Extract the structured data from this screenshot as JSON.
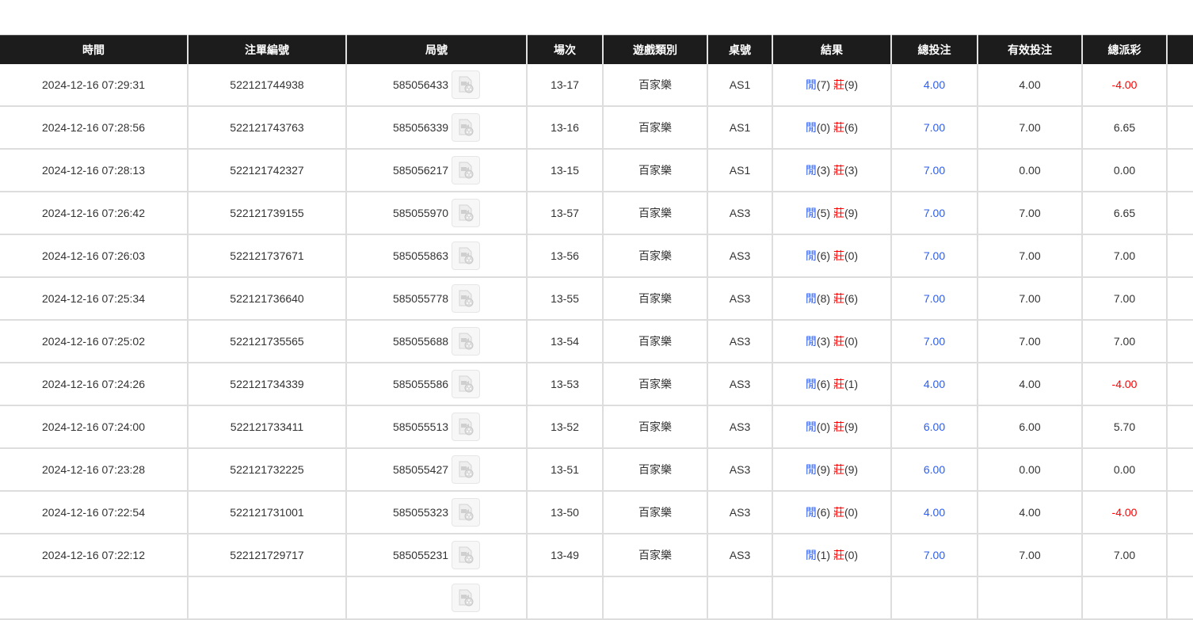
{
  "headers": [
    "時間",
    "注單編號",
    "局號",
    "場次",
    "遊戲類別",
    "桌號",
    "結果",
    "總投注",
    "有效投注",
    "總派彩",
    ""
  ],
  "result_labels": {
    "player": "閒",
    "banker": "莊"
  },
  "colors": {
    "header_bg": "#1c1c1c",
    "player": "#2a5df5",
    "banker": "#ff0000",
    "negative": "#ff0000",
    "bet": "#2a5df5"
  },
  "rows": [
    {
      "time": "2024-12-16 07:29:31",
      "order": "522121744938",
      "round": "585056433",
      "shoe": "13-17",
      "game": "百家樂",
      "table": "AS1",
      "p": "(7)",
      "b": "(9)",
      "bet": "4.00",
      "valid": "4.00",
      "payout": "-4.00",
      "neg": true
    },
    {
      "time": "2024-12-16 07:28:56",
      "order": "522121743763",
      "round": "585056339",
      "shoe": "13-16",
      "game": "百家樂",
      "table": "AS1",
      "p": "(0)",
      "b": "(6)",
      "bet": "7.00",
      "valid": "7.00",
      "payout": "6.65",
      "neg": false
    },
    {
      "time": "2024-12-16 07:28:13",
      "order": "522121742327",
      "round": "585056217",
      "shoe": "13-15",
      "game": "百家樂",
      "table": "AS1",
      "p": "(3)",
      "b": "(3)",
      "bet": "7.00",
      "valid": "0.00",
      "payout": "0.00",
      "neg": false
    },
    {
      "time": "2024-12-16 07:26:42",
      "order": "522121739155",
      "round": "585055970",
      "shoe": "13-57",
      "game": "百家樂",
      "table": "AS3",
      "p": "(5)",
      "b": "(9)",
      "bet": "7.00",
      "valid": "7.00",
      "payout": "6.65",
      "neg": false
    },
    {
      "time": "2024-12-16 07:26:03",
      "order": "522121737671",
      "round": "585055863",
      "shoe": "13-56",
      "game": "百家樂",
      "table": "AS3",
      "p": "(6)",
      "b": "(0)",
      "bet": "7.00",
      "valid": "7.00",
      "payout": "7.00",
      "neg": false
    },
    {
      "time": "2024-12-16 07:25:34",
      "order": "522121736640",
      "round": "585055778",
      "shoe": "13-55",
      "game": "百家樂",
      "table": "AS3",
      "p": "(8)",
      "b": "(6)",
      "bet": "7.00",
      "valid": "7.00",
      "payout": "7.00",
      "neg": false
    },
    {
      "time": "2024-12-16 07:25:02",
      "order": "522121735565",
      "round": "585055688",
      "shoe": "13-54",
      "game": "百家樂",
      "table": "AS3",
      "p": "(3)",
      "b": "(0)",
      "bet": "7.00",
      "valid": "7.00",
      "payout": "7.00",
      "neg": false
    },
    {
      "time": "2024-12-16 07:24:26",
      "order": "522121734339",
      "round": "585055586",
      "shoe": "13-53",
      "game": "百家樂",
      "table": "AS3",
      "p": "(6)",
      "b": "(1)",
      "bet": "4.00",
      "valid": "4.00",
      "payout": "-4.00",
      "neg": true
    },
    {
      "time": "2024-12-16 07:24:00",
      "order": "522121733411",
      "round": "585055513",
      "shoe": "13-52",
      "game": "百家樂",
      "table": "AS3",
      "p": "(0)",
      "b": "(9)",
      "bet": "6.00",
      "valid": "6.00",
      "payout": "5.70",
      "neg": false
    },
    {
      "time": "2024-12-16 07:23:28",
      "order": "522121732225",
      "round": "585055427",
      "shoe": "13-51",
      "game": "百家樂",
      "table": "AS3",
      "p": "(9)",
      "b": "(9)",
      "bet": "6.00",
      "valid": "0.00",
      "payout": "0.00",
      "neg": false
    },
    {
      "time": "2024-12-16 07:22:54",
      "order": "522121731001",
      "round": "585055323",
      "shoe": "13-50",
      "game": "百家樂",
      "table": "AS3",
      "p": "(6)",
      "b": "(0)",
      "bet": "4.00",
      "valid": "4.00",
      "payout": "-4.00",
      "neg": true
    },
    {
      "time": "2024-12-16 07:22:12",
      "order": "522121729717",
      "round": "585055231",
      "shoe": "13-49",
      "game": "百家樂",
      "table": "AS3",
      "p": "(1)",
      "b": "(0)",
      "bet": "7.00",
      "valid": "7.00",
      "payout": "7.00",
      "neg": false
    }
  ]
}
